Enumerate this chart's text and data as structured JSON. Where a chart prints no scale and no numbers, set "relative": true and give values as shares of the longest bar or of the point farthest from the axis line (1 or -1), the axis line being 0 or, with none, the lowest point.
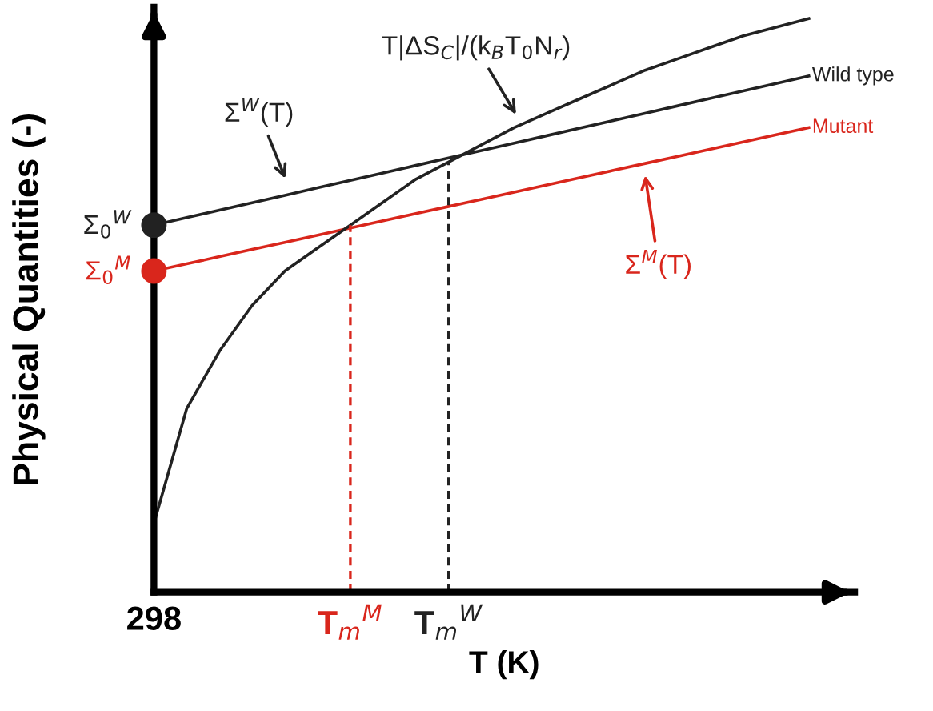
{
  "chart_data": {
    "type": "line",
    "relative": true,
    "xlabel": "T (K)",
    "ylabel": "Physical Quantities (-)",
    "tick_labels": "x",
    "grid": false,
    "legend": false,
    "marker": "none",
    "categories": [
      "298",
      null,
      null,
      null,
      null,
      null,
      "T$_{m}$$^{M}$",
      null,
      null,
      "T$_{m}$$^{W}$",
      null,
      null,
      null,
      null,
      null,
      null,
      null,
      null,
      null,
      null,
      null
    ],
    "series": [
      {
        "name": "Wild type",
        "color": "#222222",
        "values": [
          0.64,
          0.653,
          0.666,
          0.679,
          0.692,
          0.705,
          0.718,
          0.731,
          0.744,
          0.757,
          0.77,
          0.783,
          0.796,
          0.809,
          0.822,
          0.835,
          0.848,
          0.861,
          0.874,
          0.887,
          0.9
        ]
      },
      {
        "name": "Mutant",
        "color": "#d9261c",
        "values": [
          0.56,
          0.5725,
          0.585,
          0.5975,
          0.61,
          0.6225,
          0.635,
          0.6475,
          0.66,
          0.6725,
          0.685,
          0.6975,
          0.71,
          0.7225,
          0.735,
          0.7475,
          0.76,
          0.7725,
          0.785,
          0.7975,
          0.81
        ]
      },
      {
        "color": "#222222",
        "values": [
          0.12,
          0.32,
          0.42,
          0.5,
          0.56,
          0.6,
          0.64,
          0.68,
          0.72,
          0.75,
          0.78,
          0.81,
          0.835,
          0.86,
          0.885,
          0.91,
          0.93,
          0.95,
          0.97,
          0.985,
          1.0
        ]
      },
      {
        "type": "scatter",
        "marker": "circle",
        "color": "#222222",
        "x": [
          "298"
        ],
        "values": [
          0.64
        ]
      },
      {
        "type": "scatter",
        "marker": "circle",
        "color": "#d9261c",
        "x": [
          "298"
        ],
        "values": [
          0.56
        ]
      }
    ],
    "ref_lines": [
      {
        "axis": "x",
        "value": "T$_{m}$$^{M}$",
        "color": "#d9261c",
        "line_style": "dashed"
      },
      {
        "axis": "x",
        "value": "T$_{m}$$^{W}$",
        "color": "#222222",
        "line_style": "dashed"
      }
    ],
    "annotations": [
      "T|ΔS$_{C}$|/(k$_{B}$T$_{0}$N$_{r}$)",
      "Σ$^{W}$(T)",
      "Σ$^{M}$(T)",
      {
        "text": "Σ$_{0}$$^{W}$",
        "x": "298",
        "y": 0.64
      },
      {
        "text": "Σ$_{0}$$^{M}$",
        "x": "298",
        "y": 0.56
      }
    ]
  }
}
